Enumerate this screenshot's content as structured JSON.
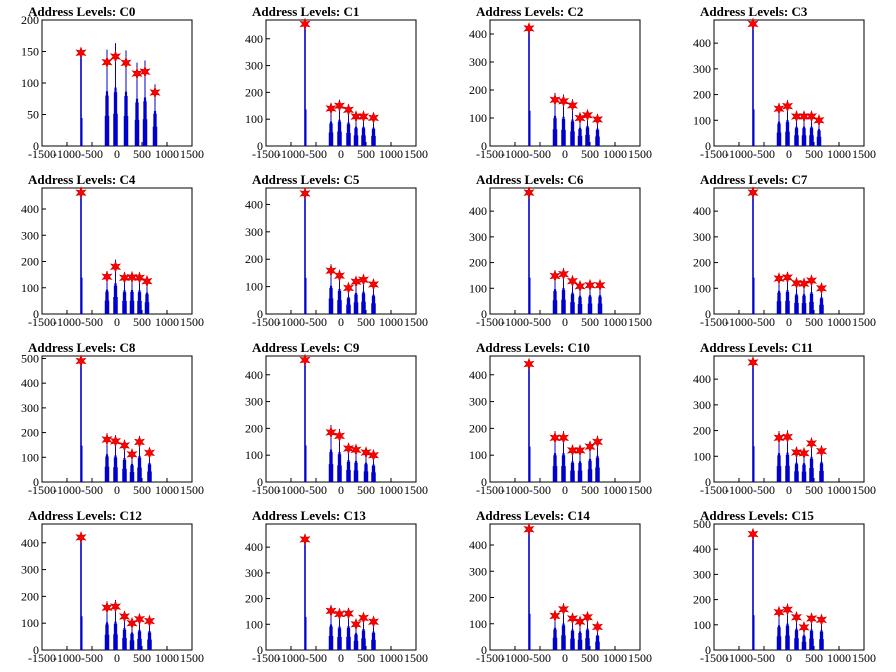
{
  "figure": {
    "background": "#ffffff",
    "bar_color": "#0000cc",
    "marker_color": "#ff0000"
  },
  "chart_data": [
    {
      "type": "bar",
      "title": "Address Levels: C0",
      "xlim": [
        -1500,
        1500
      ],
      "ylim": [
        0,
        200
      ],
      "yticks": [
        0,
        50,
        100,
        150,
        200
      ],
      "xticks": [
        -1500,
        -1000,
        -500,
        0,
        500,
        1000,
        1500
      ],
      "peaks": [
        [
          -720,
          148
        ],
        [
          -200,
          133
        ],
        [
          -30,
          142
        ],
        [
          180,
          132
        ],
        [
          400,
          115
        ],
        [
          560,
          118
        ],
        [
          760,
          85
        ]
      ]
    },
    {
      "type": "bar",
      "title": "Address Levels: C1",
      "xlim": [
        -1500,
        1500
      ],
      "ylim": [
        0,
        470
      ],
      "yticks": [
        0,
        100,
        200,
        300,
        400
      ],
      "xticks": [
        -1500,
        -1000,
        -500,
        0,
        500,
        1000,
        1500
      ],
      "peaks": [
        [
          -720,
          455
        ],
        [
          -200,
          140
        ],
        [
          -30,
          150
        ],
        [
          150,
          135
        ],
        [
          300,
          110
        ],
        [
          450,
          110
        ],
        [
          650,
          105
        ]
      ]
    },
    {
      "type": "bar",
      "title": "Address Levels: C2",
      "xlim": [
        -1500,
        1500
      ],
      "ylim": [
        0,
        450
      ],
      "yticks": [
        0,
        100,
        200,
        300,
        400
      ],
      "xticks": [
        -1500,
        -1000,
        -500,
        0,
        500,
        1000,
        1500
      ],
      "peaks": [
        [
          -720,
          420
        ],
        [
          -200,
          165
        ],
        [
          -30,
          160
        ],
        [
          150,
          145
        ],
        [
          300,
          100
        ],
        [
          450,
          110
        ],
        [
          650,
          95
        ]
      ]
    },
    {
      "type": "bar",
      "title": "Address Levels: C3",
      "xlim": [
        -1500,
        1500
      ],
      "ylim": [
        0,
        490
      ],
      "yticks": [
        0,
        100,
        200,
        300,
        400
      ],
      "xticks": [
        -1500,
        -1000,
        -500,
        0,
        500,
        1000,
        1500
      ],
      "peaks": [
        [
          -720,
          475
        ],
        [
          -200,
          145
        ],
        [
          -30,
          155
        ],
        [
          150,
          115
        ],
        [
          300,
          115
        ],
        [
          450,
          115
        ],
        [
          600,
          100
        ]
      ]
    },
    {
      "type": "bar",
      "title": "Address Levels: C4",
      "xlim": [
        -1500,
        1500
      ],
      "ylim": [
        0,
        480
      ],
      "yticks": [
        0,
        100,
        200,
        300,
        400
      ],
      "xticks": [
        -1500,
        -1000,
        -500,
        0,
        500,
        1000,
        1500
      ],
      "peaks": [
        [
          -720,
          462
        ],
        [
          -200,
          142
        ],
        [
          -30,
          180
        ],
        [
          150,
          138
        ],
        [
          300,
          140
        ],
        [
          450,
          138
        ],
        [
          600,
          125
        ]
      ]
    },
    {
      "type": "bar",
      "title": "Address Levels: C5",
      "xlim": [
        -1500,
        1500
      ],
      "ylim": [
        0,
        460
      ],
      "yticks": [
        0,
        100,
        200,
        300,
        400
      ],
      "xticks": [
        -1500,
        -1000,
        -500,
        0,
        500,
        1000,
        1500
      ],
      "peaks": [
        [
          -720,
          440
        ],
        [
          -200,
          158
        ],
        [
          -30,
          140
        ],
        [
          150,
          95
        ],
        [
          300,
          118
        ],
        [
          450,
          125
        ],
        [
          650,
          108
        ]
      ]
    },
    {
      "type": "bar",
      "title": "Address Levels: C6",
      "xlim": [
        -1500,
        1500
      ],
      "ylim": [
        0,
        490
      ],
      "yticks": [
        0,
        100,
        200,
        300,
        400
      ],
      "xticks": [
        -1500,
        -1000,
        -500,
        0,
        500,
        1000,
        1500
      ],
      "peaks": [
        [
          -720,
          472
        ],
        [
          -200,
          148
        ],
        [
          -30,
          155
        ],
        [
          150,
          128
        ],
        [
          300,
          108
        ],
        [
          500,
          112
        ],
        [
          700,
          112
        ]
      ]
    },
    {
      "type": "bar",
      "title": "Address Levels: C7",
      "xlim": [
        -1500,
        1500
      ],
      "ylim": [
        0,
        490
      ],
      "yticks": [
        0,
        100,
        200,
        300,
        400
      ],
      "xticks": [
        -1500,
        -1000,
        -500,
        0,
        500,
        1000,
        1500
      ],
      "peaks": [
        [
          -720,
          472
        ],
        [
          -200,
          138
        ],
        [
          -30,
          142
        ],
        [
          150,
          120
        ],
        [
          300,
          118
        ],
        [
          450,
          130
        ],
        [
          650,
          100
        ]
      ]
    },
    {
      "type": "bar",
      "title": "Address Levels: C8",
      "xlim": [
        -1500,
        1500
      ],
      "ylim": [
        0,
        510
      ],
      "yticks": [
        0,
        100,
        200,
        300,
        400,
        500
      ],
      "xticks": [
        -1500,
        -1000,
        -500,
        0,
        500,
        1000,
        1500
      ],
      "peaks": [
        [
          -720,
          490
        ],
        [
          -200,
          172
        ],
        [
          -30,
          165
        ],
        [
          150,
          148
        ],
        [
          300,
          112
        ],
        [
          450,
          162
        ],
        [
          650,
          118
        ]
      ]
    },
    {
      "type": "bar",
      "title": "Address Levels: C9",
      "xlim": [
        -1500,
        1500
      ],
      "ylim": [
        0,
        470
      ],
      "yticks": [
        0,
        100,
        200,
        300,
        400
      ],
      "xticks": [
        -1500,
        -1000,
        -500,
        0,
        500,
        1000,
        1500
      ],
      "peaks": [
        [
          -720,
          455
        ],
        [
          -200,
          185
        ],
        [
          -30,
          172
        ],
        [
          150,
          125
        ],
        [
          300,
          120
        ],
        [
          500,
          110
        ],
        [
          650,
          100
        ]
      ]
    },
    {
      "type": "bar",
      "title": "Address Levels: C10",
      "xlim": [
        -1500,
        1500
      ],
      "ylim": [
        0,
        470
      ],
      "yticks": [
        0,
        100,
        200,
        300,
        400
      ],
      "xticks": [
        -1500,
        -1000,
        -500,
        0,
        500,
        1000,
        1500
      ],
      "peaks": [
        [
          -720,
          440
        ],
        [
          -200,
          165
        ],
        [
          -30,
          165
        ],
        [
          150,
          118
        ],
        [
          300,
          118
        ],
        [
          500,
          132
        ],
        [
          650,
          150
        ]
      ]
    },
    {
      "type": "bar",
      "title": "Address Levels: C11",
      "xlim": [
        -1500,
        1500
      ],
      "ylim": [
        0,
        490
      ],
      "yticks": [
        0,
        100,
        200,
        300,
        400
      ],
      "xticks": [
        -1500,
        -1000,
        -500,
        0,
        500,
        1000,
        1500
      ],
      "peaks": [
        [
          -720,
          465
        ],
        [
          -200,
          172
        ],
        [
          -30,
          175
        ],
        [
          150,
          115
        ],
        [
          300,
          112
        ],
        [
          450,
          150
        ],
        [
          650,
          120
        ]
      ]
    },
    {
      "type": "bar",
      "title": "Address Levels: C12",
      "xlim": [
        -1500,
        1500
      ],
      "ylim": [
        0,
        470
      ],
      "yticks": [
        0,
        100,
        200,
        300,
        400
      ],
      "xticks": [
        -1500,
        -1000,
        -500,
        0,
        500,
        1000,
        1500
      ],
      "peaks": [
        [
          -720,
          420
        ],
        [
          -200,
          158
        ],
        [
          -30,
          162
        ],
        [
          150,
          125
        ],
        [
          300,
          100
        ],
        [
          450,
          115
        ],
        [
          650,
          108
        ]
      ]
    },
    {
      "type": "bar",
      "title": "Address Levels: C13",
      "xlim": [
        -1500,
        1500
      ],
      "ylim": [
        0,
        490
      ],
      "yticks": [
        0,
        100,
        200,
        300,
        400
      ],
      "xticks": [
        -1500,
        -1000,
        -500,
        0,
        500,
        1000,
        1500
      ],
      "peaks": [
        [
          -720,
          430
        ],
        [
          -200,
          152
        ],
        [
          -30,
          140
        ],
        [
          150,
          142
        ],
        [
          300,
          100
        ],
        [
          450,
          125
        ],
        [
          650,
          110
        ]
      ]
    },
    {
      "type": "bar",
      "title": "Address Levels: C14",
      "xlim": [
        -1500,
        1500
      ],
      "ylim": [
        0,
        480
      ],
      "yticks": [
        0,
        100,
        200,
        300,
        400
      ],
      "xticks": [
        -1500,
        -1000,
        -500,
        0,
        500,
        1000,
        1500
      ],
      "peaks": [
        [
          -720,
          460
        ],
        [
          -200,
          130
        ],
        [
          -30,
          155
        ],
        [
          150,
          120
        ],
        [
          300,
          108
        ],
        [
          450,
          125
        ],
        [
          650,
          88
        ]
      ]
    },
    {
      "type": "bar",
      "title": "Address Levels: C15",
      "xlim": [
        -1500,
        1500
      ],
      "ylim": [
        0,
        500
      ],
      "yticks": [
        0,
        100,
        200,
        300,
        400,
        500
      ],
      "xticks": [
        -1500,
        -1000,
        -500,
        0,
        500,
        1000,
        1500
      ],
      "peaks": [
        [
          -720,
          460
        ],
        [
          -200,
          150
        ],
        [
          -30,
          160
        ],
        [
          150,
          130
        ],
        [
          300,
          90
        ],
        [
          450,
          125
        ],
        [
          650,
          120
        ]
      ]
    }
  ]
}
